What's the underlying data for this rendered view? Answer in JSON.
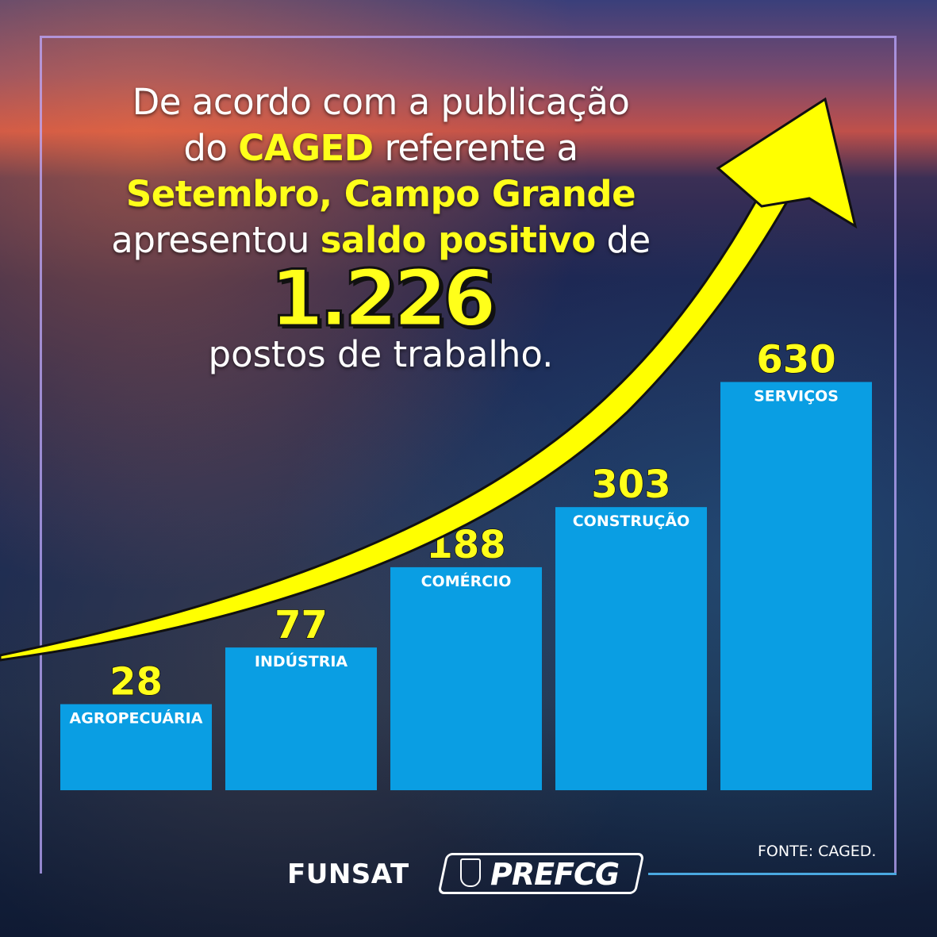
{
  "headline": {
    "line1": "De acordo com a publicação",
    "line2_pre": "do ",
    "line2_hl": "CAGED",
    "line2_post": " referente a",
    "line3_hl": "Setembro, Campo Grande",
    "line4_pre": "apresentou ",
    "line4_hl": "saldo positivo",
    "line4_post": " de",
    "total": "1.226",
    "sub": "postos de trabalho."
  },
  "colors": {
    "bar": "#0a9ee3",
    "highlight": "#ffff1a",
    "arrow": "#ffff00"
  },
  "chart_data": {
    "type": "bar",
    "categories": [
      "AGROPECUÁRIA",
      "INDÚSTRIA",
      "COMÉRCIO",
      "CONSTRUÇÃO",
      "SERVIÇOS"
    ],
    "values": [
      28,
      77,
      188,
      303,
      630
    ],
    "value_labels": [
      "28",
      "77",
      "188",
      "303",
      "630"
    ],
    "grid": false,
    "trend_arrow": true
  },
  "footer": {
    "brand1": "FUNSAT",
    "brand2": "PREFCG",
    "source": "FONTE: CAGED."
  }
}
